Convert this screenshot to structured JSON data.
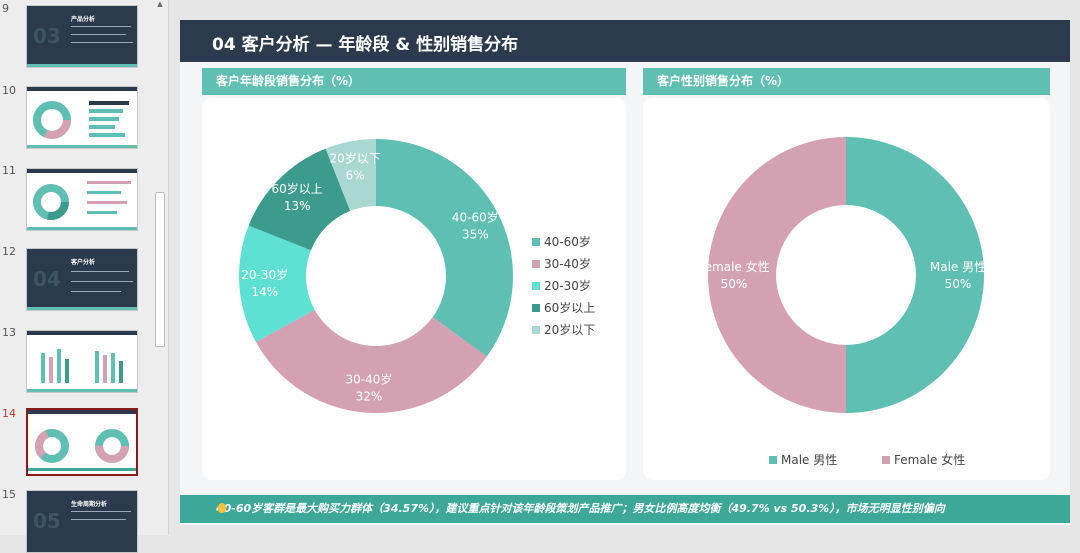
{
  "thumbnails": [
    {
      "num": "9",
      "title": "产品分析",
      "big": "03"
    },
    {
      "num": "10"
    },
    {
      "num": "11"
    },
    {
      "num": "12",
      "title": "客户分析",
      "big": "04"
    },
    {
      "num": "13"
    },
    {
      "num": "14"
    },
    {
      "num": "15",
      "title": "生命周期分析",
      "big": "05"
    }
  ],
  "slide": {
    "title": "04 客户分析 — 年龄段 & 性别销售分布",
    "footer": "40-60岁客群是最大购买力群体（34.57%），建议重点针对该年龄段策划产品推广；男女比例高度均衡（49.7% vs 50.3%），市场无明显性别偏向"
  },
  "colors": {
    "teal": "#5fbfb3",
    "pink": "#d4a1b3",
    "mint": "#5ee0d2",
    "darkteal": "#3c9b8d",
    "lightteal": "#a9d8d3",
    "navy": "#2b3a4c"
  },
  "chart_data": [
    {
      "type": "pie",
      "title": "客户年龄段销售分布（%）",
      "categories": [
        "40-60岁",
        "30-40岁",
        "20-30岁",
        "60岁以上",
        "20岁以下"
      ],
      "values": [
        35,
        32,
        14,
        13,
        6
      ],
      "labels": [
        "35%",
        "32%",
        "14%",
        "13%",
        "6%"
      ],
      "colors": [
        "#5fbfb3",
        "#d4a1b3",
        "#5ee0d2",
        "#3c9b8d",
        "#a9d8d3"
      ],
      "legend": "right"
    },
    {
      "type": "pie",
      "title": "客户性别销售分布（%）",
      "categories": [
        "Male 男性",
        "Female 女性"
      ],
      "values": [
        50,
        50
      ],
      "labels": [
        "50%",
        "50%"
      ],
      "colors": [
        "#5fbfb3",
        "#d4a1b3"
      ],
      "legend": "bottom"
    }
  ]
}
